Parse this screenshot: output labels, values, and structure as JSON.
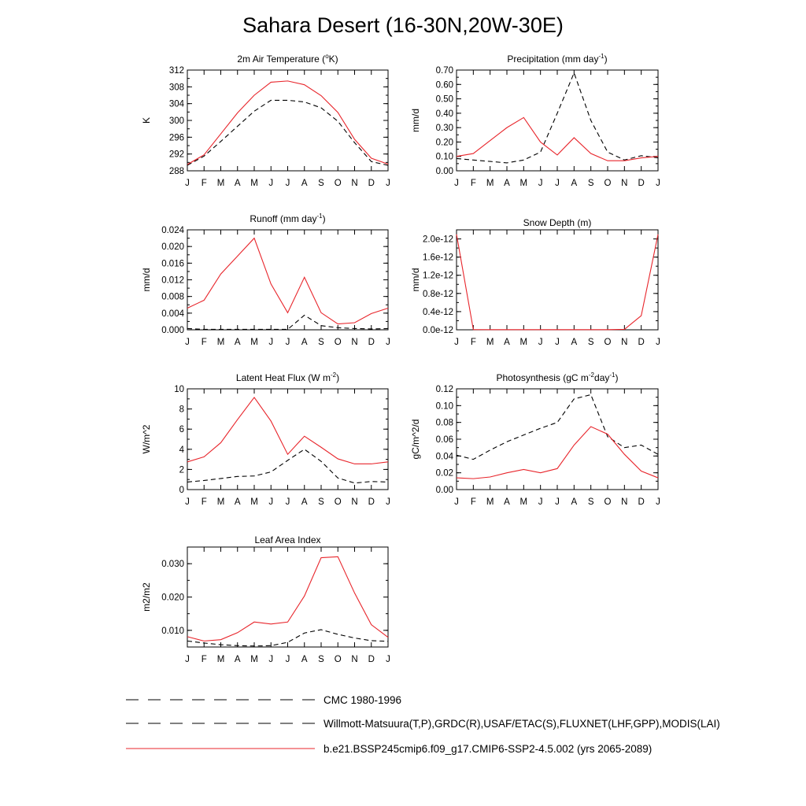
{
  "figure": {
    "title": "Sahara Desert (16-30N,20W-30E)"
  },
  "legend": [
    {
      "label": "CMC 1980-1996",
      "style": "dashed",
      "color": "#000000"
    },
    {
      "label": "Willmott-Matsuura(T,P),GRDC(R),USAF/ETAC(S),FLUXNET(LHF,GPP),MODIS(LAI)",
      "style": "dashed",
      "color": "#000000"
    },
    {
      "label": "b.e21.BSSP245cmip6.f09_g17.CMIP6-SSP2-4.5.002 (yrs 2065-2089)",
      "style": "solid",
      "color": "#e8252b"
    }
  ],
  "chart_data": [
    {
      "type": "line",
      "title": "2m Air Temperature (°K)",
      "title_parts": [
        "2m Air Temperature (",
        "o",
        "K)"
      ],
      "title_sup_index": 1,
      "ylabel": "K",
      "categories": [
        "J",
        "F",
        "M",
        "A",
        "M",
        "J",
        "J",
        "A",
        "S",
        "O",
        "N",
        "D",
        "J"
      ],
      "ylim": [
        288,
        312
      ],
      "yticks": [
        288,
        292,
        296,
        300,
        304,
        308,
        312
      ],
      "ytick_labels": [
        "288",
        "292",
        "296",
        "300",
        "304",
        "308",
        "312"
      ],
      "series": [
        {
          "style": "dashed",
          "color": "#000000",
          "values": [
            289.3,
            291.5,
            295.0,
            298.6,
            302.2,
            304.8,
            304.8,
            304.4,
            303.0,
            299.8,
            294.7,
            290.2,
            289.3
          ]
        },
        {
          "style": "solid",
          "color": "#e8252b",
          "values": [
            289.5,
            291.8,
            296.8,
            301.8,
            306.0,
            309.1,
            309.4,
            308.5,
            305.9,
            301.9,
            295.5,
            291.0,
            289.6
          ]
        }
      ]
    },
    {
      "type": "line",
      "title": "Precipitation (mm day-1)",
      "title_parts": [
        "Precipitation (mm day",
        "-1",
        ")"
      ],
      "title_sup_index": 1,
      "ylabel": "mm/d",
      "categories": [
        "J",
        "F",
        "M",
        "A",
        "M",
        "J",
        "J",
        "A",
        "S",
        "O",
        "N",
        "D",
        "J"
      ],
      "ylim": [
        0,
        0.7
      ],
      "yticks": [
        0,
        0.1,
        0.2,
        0.3,
        0.4,
        0.5,
        0.6,
        0.7
      ],
      "ytick_labels": [
        "0.00",
        "0.10",
        "0.20",
        "0.30",
        "0.40",
        "0.50",
        "0.60",
        "0.70"
      ],
      "series": [
        {
          "style": "dashed",
          "color": "#000000",
          "values": [
            0.085,
            0.075,
            0.065,
            0.055,
            0.075,
            0.13,
            0.4,
            0.68,
            0.35,
            0.13,
            0.075,
            0.105,
            0.09
          ]
        },
        {
          "style": "solid",
          "color": "#e8252b",
          "values": [
            0.1,
            0.12,
            0.21,
            0.3,
            0.37,
            0.2,
            0.11,
            0.23,
            0.12,
            0.07,
            0.07,
            0.09,
            0.1
          ]
        }
      ]
    },
    {
      "type": "line",
      "title": "Runoff (mm day-1)",
      "title_parts": [
        "Runoff (mm day",
        "-1",
        ")"
      ],
      "title_sup_index": 1,
      "ylabel": "mm/d",
      "categories": [
        "J",
        "F",
        "M",
        "A",
        "M",
        "J",
        "J",
        "A",
        "S",
        "O",
        "N",
        "D",
        "J"
      ],
      "ylim": [
        0,
        0.024
      ],
      "yticks": [
        0,
        0.004,
        0.008,
        0.012,
        0.016,
        0.02,
        0.024
      ],
      "ytick_labels": [
        "0.000",
        "0.004",
        "0.008",
        "0.012",
        "0.016",
        "0.020",
        "0.024"
      ],
      "series": [
        {
          "style": "dashed",
          "color": "#000000",
          "values": [
            0.0003,
            0.0001,
            0.0001,
            0.0001,
            0.0001,
            0.0001,
            0.0001,
            0.0035,
            0.001,
            0.0005,
            0.0003,
            0.0002,
            0.0003
          ]
        },
        {
          "style": "solid",
          "color": "#e8252b",
          "values": [
            0.0052,
            0.0071,
            0.0134,
            0.0177,
            0.022,
            0.011,
            0.0041,
            0.0126,
            0.0041,
            0.0014,
            0.0017,
            0.0039,
            0.0052
          ]
        }
      ]
    },
    {
      "type": "line",
      "title": "Snow Depth (m)",
      "title_parts": [
        "Snow Depth (m)"
      ],
      "title_sup_index": -1,
      "ylabel": "mm/d",
      "categories": [
        "J",
        "F",
        "M",
        "A",
        "M",
        "J",
        "J",
        "A",
        "S",
        "O",
        "N",
        "D",
        "J"
      ],
      "ylim": [
        0,
        2.2e-12
      ],
      "yticks": [
        0,
        4e-13,
        8e-13,
        1.2e-12,
        1.6e-12,
        2e-12
      ],
      "ytick_labels": [
        "0.0e-12",
        "0.4e-12",
        "0.8e-12",
        "1.2e-12",
        "1.6e-12",
        "2.0e-12"
      ],
      "series": [
        {
          "style": "dashed",
          "color": "#000000",
          "values": [
            0,
            0,
            0,
            0,
            0,
            0,
            0,
            0,
            0,
            0,
            0,
            0,
            0
          ]
        },
        {
          "style": "solid",
          "color": "#e8252b",
          "values": [
            2.1e-12,
            5e-15,
            3e-15,
            3e-15,
            3e-15,
            3e-15,
            3e-15,
            3e-15,
            3e-15,
            3e-15,
            1e-14,
            3.1e-13,
            2.1e-12
          ]
        }
      ]
    },
    {
      "type": "line",
      "title": "Latent Heat Flux (W m-2)",
      "title_parts": [
        "Latent Heat Flux (W m",
        "-2",
        ")"
      ],
      "title_sup_index": 1,
      "ylabel": "W/m^2",
      "categories": [
        "J",
        "F",
        "M",
        "A",
        "M",
        "J",
        "J",
        "A",
        "S",
        "O",
        "N",
        "D",
        "J"
      ],
      "ylim": [
        0,
        10
      ],
      "yticks": [
        0,
        2,
        4,
        6,
        8,
        10
      ],
      "ytick_labels": [
        "0",
        "2",
        "4",
        "6",
        "8",
        "10"
      ],
      "series": [
        {
          "style": "dashed",
          "color": "#000000",
          "values": [
            0.75,
            0.9,
            1.1,
            1.3,
            1.35,
            1.75,
            2.9,
            4.0,
            2.8,
            1.15,
            0.65,
            0.8,
            0.75
          ]
        },
        {
          "style": "solid",
          "color": "#e8252b",
          "values": [
            2.75,
            3.25,
            4.65,
            6.95,
            9.15,
            6.8,
            3.5,
            5.3,
            4.2,
            3.05,
            2.55,
            2.55,
            2.75
          ]
        }
      ]
    },
    {
      "type": "line",
      "title": "Photosynthesis (gC m-2day-1)",
      "title_parts": [
        "Photosynthesis (gC m",
        "-2",
        "day",
        "-1",
        ")"
      ],
      "title_sup_index": [
        1,
        3
      ],
      "ylabel": "gC/m^2/d",
      "categories": [
        "J",
        "F",
        "M",
        "A",
        "M",
        "J",
        "J",
        "A",
        "S",
        "O",
        "N",
        "D",
        "J"
      ],
      "ylim": [
        0,
        0.12
      ],
      "yticks": [
        0,
        0.02,
        0.04,
        0.06,
        0.08,
        0.1,
        0.12
      ],
      "ytick_labels": [
        "0.00",
        "0.02",
        "0.04",
        "0.06",
        "0.08",
        "0.10",
        "0.12"
      ],
      "series": [
        {
          "style": "dashed",
          "color": "#000000",
          "values": [
            0.041,
            0.036,
            0.047,
            0.057,
            0.065,
            0.073,
            0.08,
            0.108,
            0.113,
            0.063,
            0.05,
            0.053,
            0.042
          ]
        },
        {
          "style": "solid",
          "color": "#e8252b",
          "values": [
            0.014,
            0.013,
            0.015,
            0.02,
            0.024,
            0.02,
            0.025,
            0.053,
            0.075,
            0.066,
            0.042,
            0.022,
            0.014
          ]
        }
      ]
    },
    {
      "type": "line",
      "title": "Leaf Area Index",
      "title_parts": [
        "Leaf Area Index"
      ],
      "title_sup_index": -1,
      "ylabel": "m2/m2",
      "categories": [
        "J",
        "F",
        "M",
        "A",
        "M",
        "J",
        "J",
        "A",
        "S",
        "O",
        "N",
        "D",
        "J"
      ],
      "ylim": [
        0.005,
        0.035
      ],
      "yticks": [
        0.01,
        0.02,
        0.03
      ],
      "ytick_labels": [
        "0.010",
        "0.020",
        "0.030"
      ],
      "series": [
        {
          "style": "dashed",
          "color": "#000000",
          "values": [
            0.0068,
            0.0062,
            0.0057,
            0.0054,
            0.0053,
            0.0054,
            0.0064,
            0.0092,
            0.0102,
            0.0088,
            0.0077,
            0.0069,
            0.0067
          ]
        },
        {
          "style": "solid",
          "color": "#e8252b",
          "values": [
            0.0081,
            0.0068,
            0.0072,
            0.0093,
            0.0125,
            0.0119,
            0.0125,
            0.0203,
            0.0318,
            0.0321,
            0.0212,
            0.0117,
            0.0079
          ]
        }
      ]
    }
  ]
}
